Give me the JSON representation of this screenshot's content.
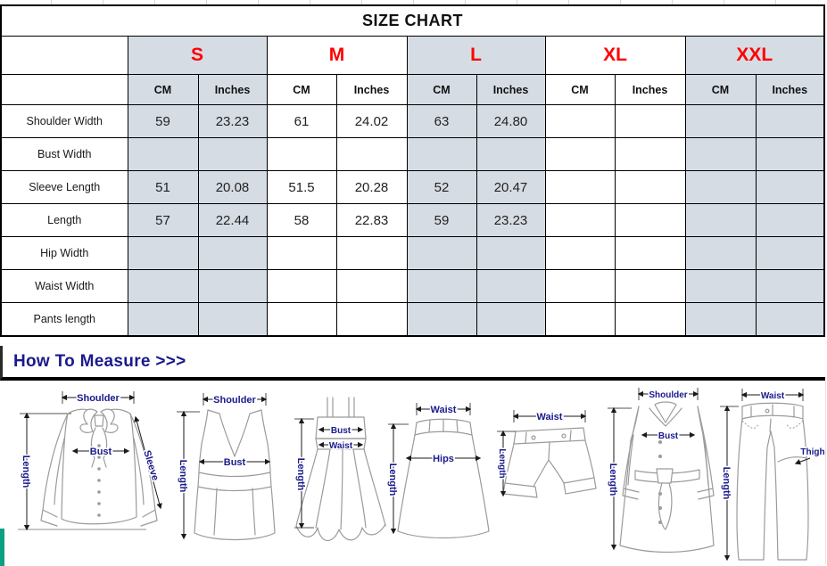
{
  "title": "SIZE CHART",
  "table": {
    "sizes": [
      {
        "label": "S",
        "shaded": true
      },
      {
        "label": "M",
        "shaded": false
      },
      {
        "label": "L",
        "shaded": true
      },
      {
        "label": "XL",
        "shaded": false
      },
      {
        "label": "XXL",
        "shaded": true
      }
    ],
    "unit_headers": [
      "CM",
      "Inches"
    ],
    "rows": [
      {
        "label": "Shoulder Width",
        "values": [
          "59",
          "23.23",
          "61",
          "24.02",
          "63",
          "24.80",
          "",
          "",
          "",
          ""
        ]
      },
      {
        "label": "Bust Width",
        "values": [
          "",
          "",
          "",
          "",
          "",
          "",
          "",
          "",
          "",
          ""
        ]
      },
      {
        "label": "Sleeve Length",
        "values": [
          "51",
          "20.08",
          "51.5",
          "20.28",
          "52",
          "20.47",
          "",
          "",
          "",
          ""
        ]
      },
      {
        "label": "Length",
        "values": [
          "57",
          "22.44",
          "58",
          "22.83",
          "59",
          "23.23",
          "",
          "",
          "",
          ""
        ]
      },
      {
        "label": "Hip Width",
        "values": [
          "",
          "",
          "",
          "",
          "",
          "",
          "",
          "",
          "",
          ""
        ]
      },
      {
        "label": "Waist Width",
        "values": [
          "",
          "",
          "",
          "",
          "",
          "",
          "",
          "",
          "",
          ""
        ]
      },
      {
        "label": "Pants length",
        "values": [
          "",
          "",
          "",
          "",
          "",
          "",
          "",
          "",
          "",
          ""
        ]
      }
    ]
  },
  "measure": {
    "heading": "How To Measure >>>",
    "labels": {
      "shoulder": "Shoulder",
      "bust": "Bust",
      "sleeve": "Sleeve",
      "length": "Length",
      "waist": "Waist",
      "hips": "Hips",
      "thigh": "Thigh"
    },
    "diagrams": [
      "blouse",
      "tank-top",
      "cami-dress",
      "skirt",
      "shorts",
      "coat",
      "pants"
    ]
  },
  "colors": {
    "size_header_red": "#ff0000",
    "shaded_cell": "#d6dce4",
    "measure_navy": "#1a1a8c",
    "accent_teal": "#0aa182"
  }
}
